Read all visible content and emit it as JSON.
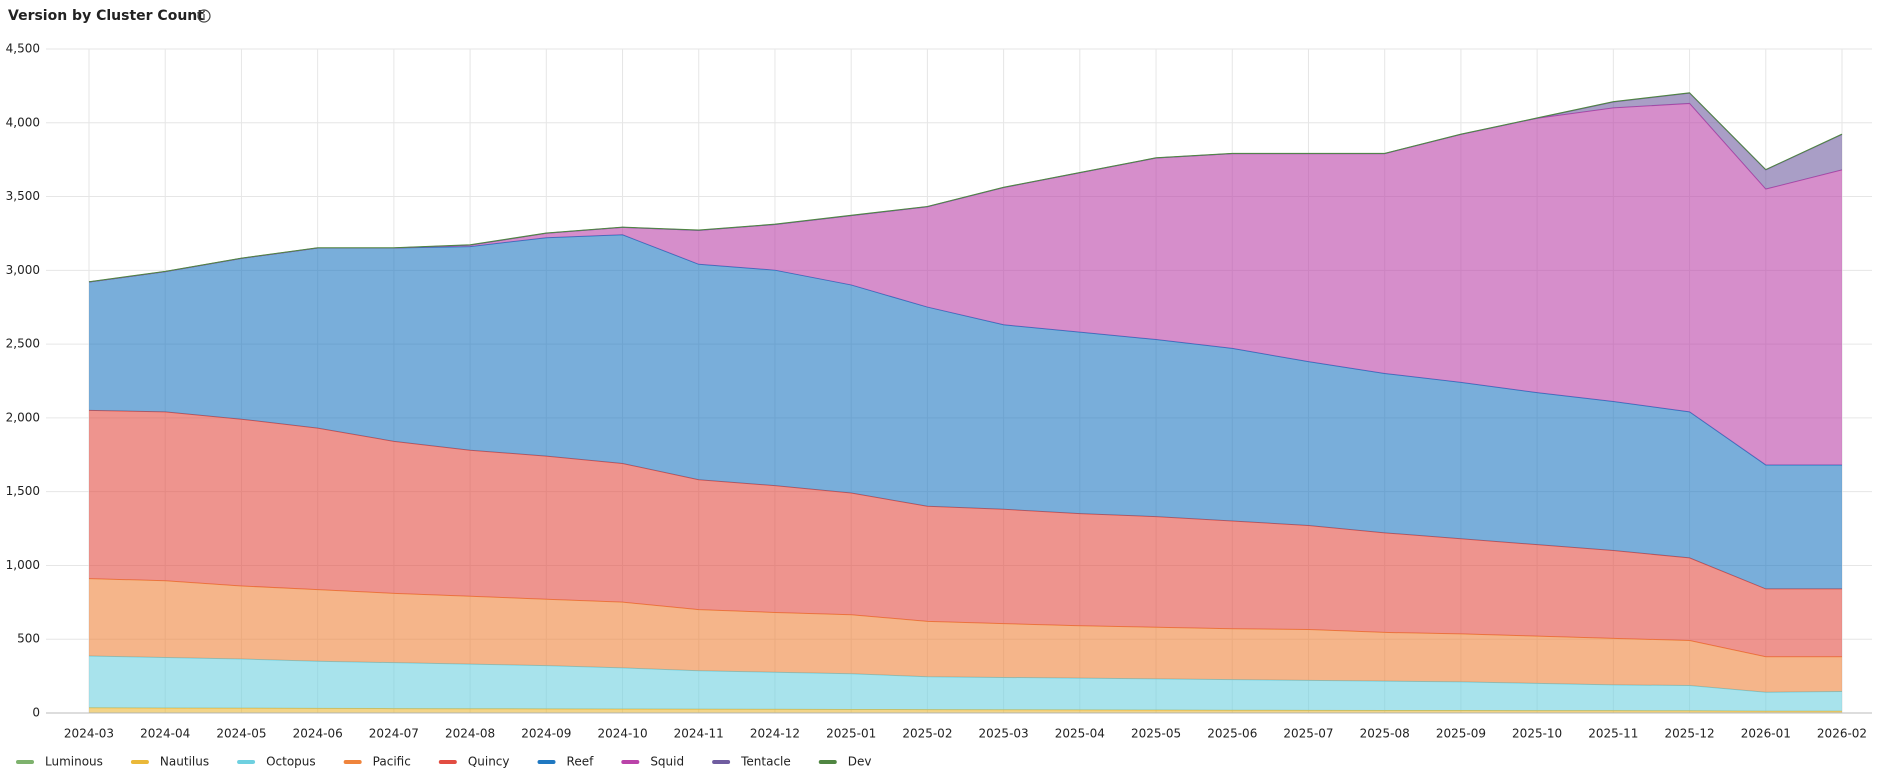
{
  "chart_data": {
    "type": "stacked_area",
    "title": "Version by Cluster Count",
    "x": [
      "2024-03",
      "2024-04",
      "2024-05",
      "2024-06",
      "2024-07",
      "2024-08",
      "2024-09",
      "2024-10",
      "2024-11",
      "2024-12",
      "2025-01",
      "2025-02",
      "2025-03",
      "2025-04",
      "2025-05",
      "2025-06",
      "2025-07",
      "2025-08",
      "2025-09",
      "2025-10",
      "2025-11",
      "2025-12",
      "2026-01",
      "2026-02"
    ],
    "series": [
      {
        "name": "Luminous",
        "color": "#7eb26d",
        "values": [
          1,
          1,
          1,
          1,
          1,
          1,
          1,
          1,
          1,
          1,
          1,
          1,
          1,
          1,
          1,
          1,
          1,
          1,
          1,
          1,
          1,
          1,
          1,
          1
        ]
      },
      {
        "name": "Nautilus",
        "color": "#eab839",
        "values": [
          35,
          33,
          32,
          30,
          29,
          28,
          27,
          26,
          25,
          24,
          23,
          22,
          21,
          20,
          19,
          18,
          17,
          16,
          16,
          15,
          15,
          14,
          12,
          12
        ]
      },
      {
        "name": "Octopus",
        "color": "#6ed0e0",
        "values": [
          350,
          342,
          333,
          320,
          311,
          302,
          293,
          279,
          260,
          251,
          242,
          223,
          219,
          215,
          211,
          207,
          203,
          199,
          194,
          185,
          175,
          171,
          128,
          133
        ]
      },
      {
        "name": "Pacific",
        "color": "#ef843c",
        "values": [
          525,
          520,
          495,
          485,
          470,
          460,
          450,
          445,
          415,
          405,
          400,
          375,
          365,
          355,
          350,
          345,
          345,
          330,
          325,
          320,
          315,
          305,
          240,
          235
        ]
      },
      {
        "name": "Quincy",
        "color": "#e24d42",
        "values": [
          1140,
          1145,
          1130,
          1095,
          1030,
          990,
          970,
          940,
          880,
          860,
          825,
          780,
          775,
          760,
          750,
          730,
          705,
          675,
          645,
          620,
          595,
          560,
          460,
          460
        ]
      },
      {
        "name": "Reef",
        "color": "#1f78c1",
        "values": [
          870,
          950,
          1090,
          1220,
          1310,
          1380,
          1480,
          1550,
          1460,
          1460,
          1410,
          1350,
          1250,
          1230,
          1200,
          1170,
          1110,
          1080,
          1060,
          1030,
          1010,
          990,
          840,
          840
        ]
      },
      {
        "name": "Squid",
        "color": "#ba43a9",
        "values": [
          0,
          0,
          0,
          0,
          0,
          10,
          30,
          50,
          230,
          310,
          470,
          680,
          930,
          1080,
          1230,
          1320,
          1410,
          1490,
          1680,
          1860,
          1990,
          2090,
          1870,
          2000
        ]
      },
      {
        "name": "Tentacle",
        "color": "#705da0",
        "values": [
          0,
          0,
          0,
          0,
          0,
          0,
          0,
          0,
          0,
          0,
          0,
          0,
          0,
          0,
          0,
          0,
          0,
          0,
          0,
          0,
          40,
          70,
          130,
          240
        ]
      },
      {
        "name": "Dev",
        "color": "#508642",
        "values": [
          2,
          2,
          2,
          2,
          2,
          2,
          2,
          2,
          2,
          2,
          2,
          2,
          2,
          2,
          2,
          2,
          2,
          2,
          2,
          2,
          2,
          2,
          2,
          2
        ]
      }
    ],
    "ylim": [
      0,
      4500
    ],
    "yticks": [
      0,
      500,
      {
        "value": 1000,
        "label": "1,000"
      },
      {
        "value": 1500,
        "label": "1,500"
      },
      {
        "value": 2000,
        "label": "2,000"
      },
      {
        "value": 2500,
        "label": "2,500"
      },
      {
        "value": 3000,
        "label": "3,000"
      },
      {
        "value": 3500,
        "label": "3,500"
      },
      {
        "value": 4000,
        "label": "4,000"
      },
      {
        "value": 4500,
        "label": "4,500"
      }
    ],
    "grid": true,
    "legend": "bottom"
  }
}
